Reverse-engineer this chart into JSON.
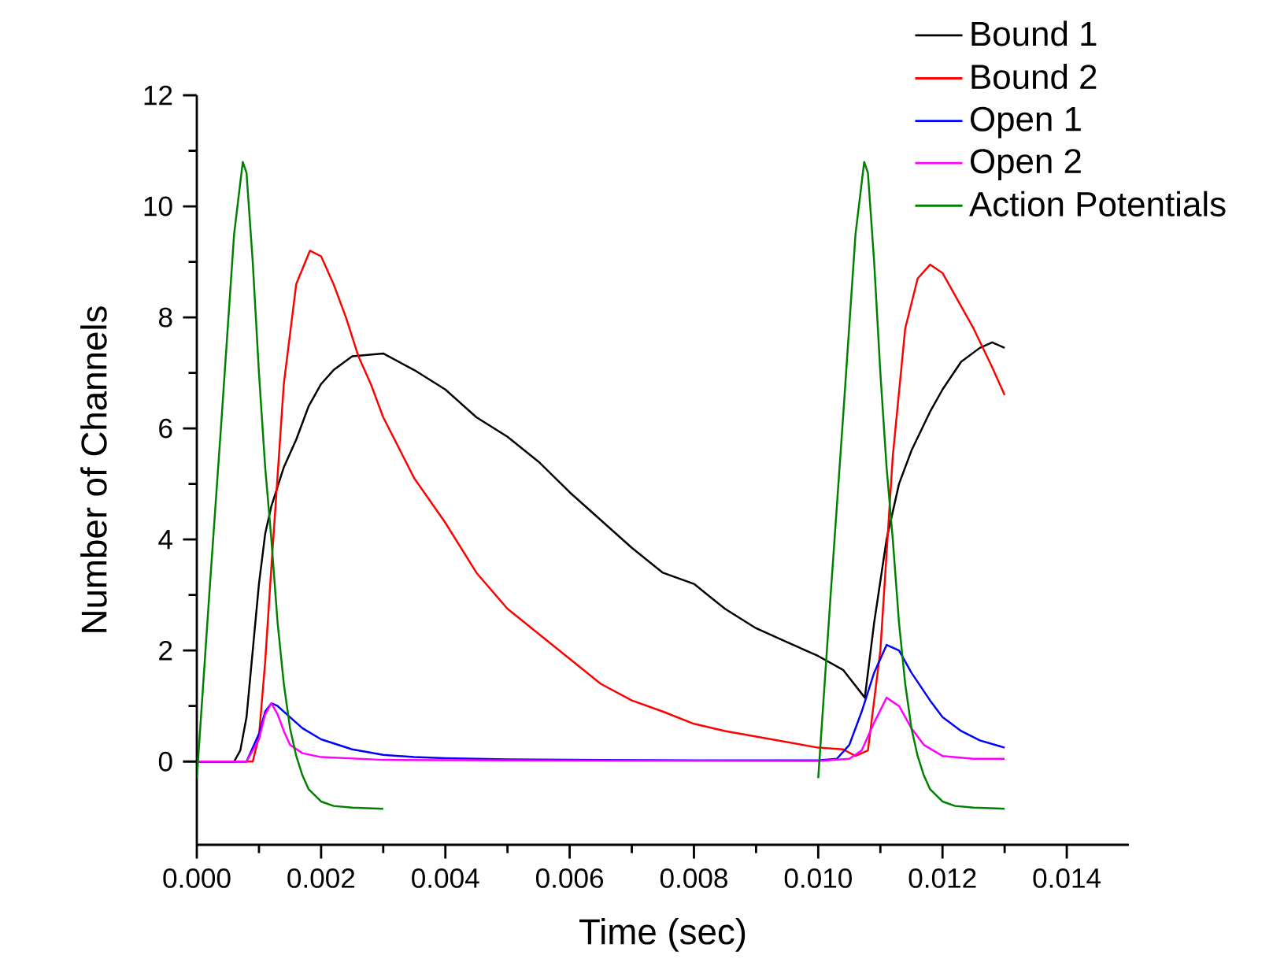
{
  "chart_data": {
    "type": "line",
    "xlabel": "Time (sec)",
    "ylabel": "Number of Channels",
    "xlim": [
      0,
      0.015
    ],
    "ylim": [
      -1.5,
      12
    ],
    "xticks": [
      {
        "value": 0,
        "label": "0.000"
      },
      {
        "value": 0.002,
        "label": "0.002"
      },
      {
        "value": 0.004,
        "label": "0.004"
      },
      {
        "value": 0.006,
        "label": "0.006"
      },
      {
        "value": 0.008,
        "label": "0.008"
      },
      {
        "value": 0.01,
        "label": "0.010"
      },
      {
        "value": 0.012,
        "label": "0.012"
      },
      {
        "value": 0.014,
        "label": "0.014"
      }
    ],
    "yticks": [
      0,
      2,
      4,
      6,
      8,
      10,
      12
    ],
    "legend": "top right",
    "marker": "none",
    "line_style": "solid",
    "series": [
      {
        "name": "Bound 1",
        "color": "#000000",
        "x": [
          0,
          0.0006,
          0.0007,
          0.0008,
          0.0009,
          0.001,
          0.0011,
          0.0012,
          0.0014,
          0.0016,
          0.0018,
          0.002,
          0.0022,
          0.0025,
          0.003,
          0.0035,
          0.004,
          0.0045,
          0.005,
          0.0055,
          0.006,
          0.0065,
          0.007,
          0.0075,
          0.008,
          0.0085,
          0.009,
          0.0095,
          0.01,
          0.0104,
          0.01075,
          0.0109,
          0.0111,
          0.0113,
          0.0115,
          0.0118,
          0.012,
          0.0123,
          0.0126,
          0.0128,
          0.013
        ],
        "values": [
          0,
          0,
          0.2,
          0.8,
          2.0,
          3.2,
          4.1,
          4.6,
          5.3,
          5.8,
          6.4,
          6.8,
          7.05,
          7.3,
          7.35,
          7.05,
          6.7,
          6.2,
          5.85,
          5.4,
          4.85,
          4.35,
          3.85,
          3.4,
          3.2,
          2.75,
          2.4,
          2.15,
          1.9,
          1.65,
          1.15,
          2.5,
          4.0,
          5.0,
          5.6,
          6.3,
          6.7,
          7.2,
          7.45,
          7.55,
          7.45
        ]
      },
      {
        "name": "Bound 2",
        "color": "#ff0000",
        "x": [
          0,
          0.0009,
          0.001,
          0.0011,
          0.0012,
          0.0014,
          0.0016,
          0.00182,
          0.002,
          0.0022,
          0.0024,
          0.0026,
          0.0028,
          0.003,
          0.0035,
          0.004,
          0.0045,
          0.005,
          0.0055,
          0.006,
          0.0065,
          0.007,
          0.0075,
          0.008,
          0.0085,
          0.009,
          0.0095,
          0.01,
          0.0104,
          0.0106,
          0.0108,
          0.011,
          0.0112,
          0.0114,
          0.0116,
          0.0118,
          0.012,
          0.0122,
          0.0125,
          0.0128,
          0.013
        ],
        "values": [
          0,
          0,
          0.45,
          1.8,
          3.5,
          6.8,
          8.6,
          9.2,
          9.1,
          8.6,
          8.0,
          7.3,
          6.8,
          6.2,
          5.1,
          4.3,
          3.4,
          2.75,
          2.3,
          1.85,
          1.4,
          1.1,
          0.9,
          0.68,
          0.55,
          0.45,
          0.35,
          0.25,
          0.22,
          0.1,
          0.2,
          2.0,
          5.5,
          7.8,
          8.7,
          8.95,
          8.8,
          8.4,
          7.8,
          7.1,
          6.6
        ]
      },
      {
        "name": "Open 1",
        "color": "#0000ff",
        "x": [
          0,
          0.0008,
          0.001,
          0.0011,
          0.0012,
          0.0013,
          0.0015,
          0.0017,
          0.002,
          0.0025,
          0.003,
          0.0035,
          0.004,
          0.005,
          0.006,
          0.008,
          0.01,
          0.0103,
          0.0105,
          0.0107,
          0.0109,
          0.0111,
          0.0113,
          0.0115,
          0.0118,
          0.012,
          0.0123,
          0.0126,
          0.013
        ],
        "values": [
          0,
          0,
          0.5,
          0.9,
          1.05,
          1.0,
          0.8,
          0.6,
          0.4,
          0.22,
          0.12,
          0.08,
          0.06,
          0.04,
          0.03,
          0.02,
          0.02,
          0.05,
          0.3,
          0.9,
          1.6,
          2.1,
          2.0,
          1.6,
          1.1,
          0.8,
          0.55,
          0.38,
          0.25
        ]
      },
      {
        "name": "Open 2",
        "color": "#ff00ff",
        "x": [
          0,
          0.0008,
          0.001,
          0.0011,
          0.0012,
          0.0013,
          0.0014,
          0.0015,
          0.0017,
          0.002,
          0.003,
          0.005,
          0.01,
          0.0105,
          0.0107,
          0.0109,
          0.0111,
          0.0113,
          0.0115,
          0.0117,
          0.012,
          0.0125,
          0.013
        ],
        "values": [
          0,
          0,
          0.4,
          0.85,
          1.05,
          0.85,
          0.55,
          0.3,
          0.15,
          0.08,
          0.03,
          0.02,
          0.01,
          0.05,
          0.2,
          0.7,
          1.15,
          1.0,
          0.6,
          0.3,
          0.1,
          0.05,
          0.05
        ]
      },
      {
        "name": "Action Potentials",
        "color": "#008000",
        "x": [
          0,
          0.0002,
          0.0004,
          0.0006,
          0.00074,
          0.0008,
          0.0009,
          0.001,
          0.0011,
          0.0012,
          0.0013,
          0.0014,
          0.0015,
          0.0016,
          0.0017,
          0.0018,
          0.002,
          0.0022,
          0.0025,
          0.003,
          null,
          0.01,
          0.0102,
          0.0104,
          0.0106,
          0.01074,
          0.0108,
          0.0109,
          0.011,
          0.0111,
          0.0112,
          0.0113,
          0.0114,
          0.0115,
          0.0116,
          0.0117,
          0.0118,
          0.012,
          0.0122,
          0.0125,
          0.013
        ],
        "values": [
          -0.3,
          3,
          6.2,
          9.5,
          10.8,
          10.6,
          9.0,
          7.0,
          5.3,
          4.0,
          2.5,
          1.4,
          0.6,
          0.1,
          -0.25,
          -0.5,
          -0.72,
          -0.8,
          -0.83,
          -0.85,
          null,
          -0.3,
          3,
          6.2,
          9.5,
          10.8,
          10.6,
          9.0,
          7.0,
          5.3,
          4.0,
          2.5,
          1.4,
          0.6,
          0.1,
          -0.25,
          -0.5,
          -0.72,
          -0.8,
          -0.83,
          -0.85
        ]
      }
    ]
  }
}
